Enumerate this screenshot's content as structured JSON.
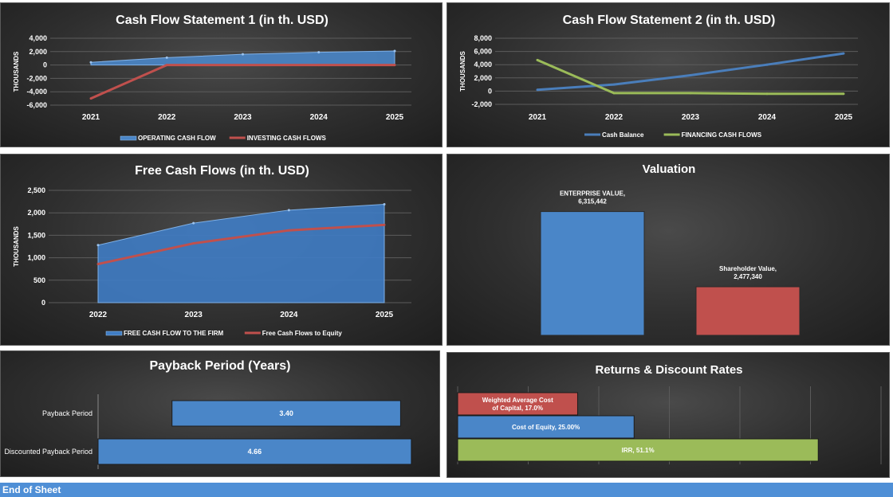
{
  "footer": {
    "text": "End of Sheet"
  },
  "chart_data": [
    {
      "id": "cfs1",
      "type": "line",
      "title": "Cash Flow Statement 1 (in th. USD)",
      "ylabel": "THOUSANDS",
      "x": [
        "2021",
        "2022",
        "2023",
        "2024",
        "2025"
      ],
      "ylim": [
        -6000,
        4000
      ],
      "yticks": [
        "4,000",
        "2,000",
        "0",
        "-2,000",
        "-4,000",
        "-6,000"
      ],
      "grid": true,
      "legend": "bottom",
      "series": [
        {
          "name": "OPERATING CASH FLOW",
          "values": [
            400,
            1100,
            1600,
            1900,
            2100
          ],
          "color": "#4a86c8",
          "style": "area"
        },
        {
          "name": "INVESTING CASH FLOWS",
          "values": [
            -5000,
            0,
            0,
            0,
            0
          ],
          "color": "#c0504d",
          "style": "line"
        }
      ]
    },
    {
      "id": "cfs2",
      "type": "line",
      "title": "Cash Flow Statement 2 (in th. USD)",
      "ylabel": "THOUSANDS",
      "x": [
        "2021",
        "2022",
        "2023",
        "2024",
        "2025"
      ],
      "ylim": [
        -2000,
        8000
      ],
      "yticks": [
        "8,000",
        "6,000",
        "4,000",
        "2,000",
        "0",
        "-2,000"
      ],
      "grid": true,
      "legend": "bottom",
      "series": [
        {
          "name": "Cash Balance",
          "values": [
            200,
            1000,
            2400,
            4000,
            5700
          ],
          "color": "#4a7ebb"
        },
        {
          "name": "FINANCING CASH FLOWS",
          "values": [
            4700,
            -300,
            -300,
            -400,
            -400
          ],
          "color": "#9bbb59"
        }
      ]
    },
    {
      "id": "fcf",
      "type": "area",
      "title": "Free Cash Flows (in th. USD)",
      "ylabel": "THOUSANDS",
      "x": [
        "2022",
        "2023",
        "2024",
        "2025"
      ],
      "ylim": [
        0,
        2500
      ],
      "yticks": [
        "2,500",
        "2,000",
        "1,500",
        "1,000",
        "500",
        "0"
      ],
      "grid": true,
      "legend": "bottom",
      "series": [
        {
          "name": "FREE CASH FLOW TO THE FIRM",
          "values": [
            1280,
            1770,
            2060,
            2190
          ],
          "color": "#3f7cc4",
          "style": "area"
        },
        {
          "name": "Free Cash Flows to Equity",
          "values": [
            860,
            1320,
            1610,
            1730
          ],
          "color": "#c0504d",
          "style": "line"
        }
      ]
    },
    {
      "id": "valuation",
      "type": "bar",
      "title": "Valuation",
      "categories": [
        "ENTERPRISE VALUE",
        "Shareholder Value"
      ],
      "values": [
        6315442,
        2477340
      ],
      "labels": [
        [
          "ENTERPRISE VALUE,",
          "6,315,442"
        ],
        [
          "Shareholder Value,",
          "2,477,340"
        ]
      ],
      "colors": [
        "#4a86c8",
        "#c0504d"
      ],
      "ylim": [
        0,
        7600000
      ]
    },
    {
      "id": "payback",
      "type": "bar",
      "orientation": "horizontal",
      "title": "Payback Period (Years)",
      "categories": [
        "Payback Period",
        "Discounted Payback Period"
      ],
      "values": [
        3.4,
        4.66
      ],
      "starts": [
        1.1,
        0
      ],
      "labels": [
        "3.40",
        "4.66"
      ],
      "color": "#4a86c8",
      "xlim": [
        0,
        5.1
      ]
    },
    {
      "id": "returns",
      "type": "bar",
      "orientation": "horizontal",
      "title": "Returns & Discount Rates",
      "categories": [
        "Weighted Average Cost of Capital",
        "Cost of Equity",
        "IRR"
      ],
      "values": [
        17.0,
        25.0,
        51.1
      ],
      "labels": [
        [
          "Weighted Average Cost",
          "of Capital, 17.0%"
        ],
        [
          "Cost of Equity, 25.00%"
        ],
        [
          "IRR, 51.1%"
        ]
      ],
      "colors": [
        "#c0504d",
        "#4a86c8",
        "#9bbb59"
      ],
      "xlim": [
        0,
        60
      ],
      "grid": true
    }
  ]
}
